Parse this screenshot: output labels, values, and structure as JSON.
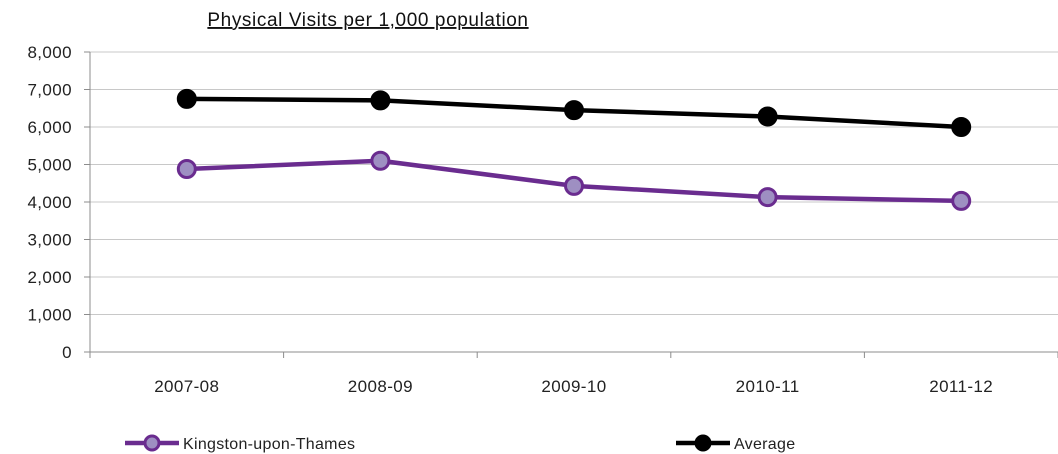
{
  "chart_data": {
    "type": "line",
    "title": "Physical Visits per 1,000 population",
    "xlabel": "",
    "ylabel": "",
    "categories": [
      "2007-08",
      "2008-09",
      "2009-10",
      "2010-11",
      "2011-12"
    ],
    "ylim": [
      0,
      8000
    ],
    "yticks": [
      0,
      1000,
      2000,
      3000,
      4000,
      5000,
      6000,
      7000,
      8000
    ],
    "ytick_labels": [
      "0",
      "1,000",
      "2,000",
      "3,000",
      "4,000",
      "5,000",
      "6,000",
      "7,000",
      "8,000"
    ],
    "grid": true,
    "legend_position": "bottom",
    "series": [
      {
        "name": "Kingston-upon-Thames",
        "values": [
          4880,
          5100,
          4430,
          4130,
          4030
        ],
        "color": "#6a2c8f",
        "marker_fill": "#9e8fc2"
      },
      {
        "name": "Average",
        "values": [
          6750,
          6710,
          6450,
          6280,
          6000
        ],
        "color": "#000000",
        "marker_fill": "#000000"
      }
    ]
  }
}
